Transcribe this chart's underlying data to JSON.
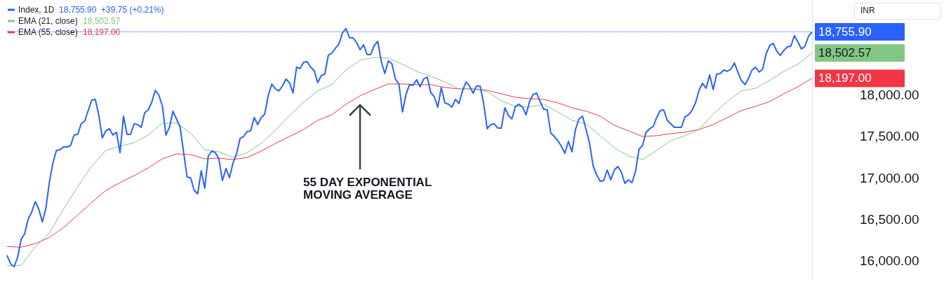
{
  "chart_data": {
    "type": "line",
    "categories": [
      null,
      null,
      null,
      null,
      null,
      null,
      null,
      null,
      null,
      null,
      null,
      null,
      null,
      null,
      null,
      null,
      null,
      null,
      null,
      null,
      null,
      null,
      null,
      null,
      null,
      null,
      null,
      null,
      null,
      null,
      null,
      null,
      null,
      null,
      null,
      null,
      null,
      null,
      null,
      null,
      null,
      null,
      null,
      null,
      null,
      null,
      null,
      null,
      null,
      null,
      null,
      null,
      null,
      null,
      null,
      null,
      null,
      null,
      null,
      null,
      null,
      null,
      null,
      null,
      null,
      null,
      null,
      null,
      null,
      null,
      null,
      null,
      null,
      null,
      null,
      null,
      null,
      null,
      null,
      null,
      null,
      null,
      null,
      null,
      null,
      null,
      null,
      null,
      null,
      null,
      null,
      null,
      null,
      null,
      null,
      null,
      null,
      null,
      null,
      null,
      null,
      null,
      null,
      null,
      null,
      null,
      null,
      null,
      null,
      null,
      null,
      null,
      null,
      null,
      null,
      null,
      null,
      null,
      null,
      null,
      null,
      null,
      null,
      null,
      null,
      null,
      null,
      null,
      null,
      null,
      null,
      null,
      null,
      null,
      null,
      null,
      null,
      null,
      null,
      null,
      null,
      null,
      null,
      null,
      null,
      null,
      null,
      null,
      null,
      null,
      null,
      null,
      null,
      null,
      null,
      null,
      null,
      null,
      null,
      null,
      null,
      null,
      null,
      null,
      null,
      null,
      null,
      null,
      null,
      null,
      null,
      null,
      null,
      null,
      null,
      null,
      null,
      null,
      null,
      null,
      null,
      null,
      null,
      null,
      null,
      null,
      null,
      null,
      null,
      null,
      null,
      null,
      null,
      null,
      null,
      null,
      null,
      null,
      null,
      null,
      null,
      null,
      null,
      null,
      null,
      null,
      null,
      null,
      null,
      null,
      null,
      null,
      null,
      null,
      null,
      null,
      null,
      null,
      null,
      null,
      null,
      null,
      null,
      null,
      null,
      null,
      null,
      null,
      null
    ],
    "series": [
      {
        "name": "Index, 1D",
        "color": "#2962ff",
        "values": [
          16065,
          15964,
          15930,
          16040,
          16259,
          16326,
          16503,
          16587,
          16714,
          16621,
          16469,
          16629,
          16949,
          17177,
          17329,
          17337,
          17371,
          17371,
          17388,
          17514,
          17522,
          17649,
          17682,
          17809,
          17935,
          17944,
          17750,
          17480,
          17565,
          17590,
          17514,
          17548,
          17303,
          17741,
          17522,
          17522,
          17649,
          17640,
          17607,
          17784,
          17817,
          17910,
          18053,
          17994,
          17868,
          17514,
          17607,
          17800,
          17708,
          17615,
          17312,
          17008,
          17000,
          16848,
          16806,
          17084,
          16874,
          17261,
          17320,
          17303,
          17228,
          16966,
          17110,
          17000,
          17177,
          17287,
          17472,
          17497,
          17556,
          17565,
          17725,
          17640,
          17725,
          17767,
          17994,
          18129,
          18070,
          18045,
          18104,
          18188,
          18146,
          18019,
          18331,
          18314,
          18390,
          18399,
          18331,
          18289,
          18146,
          18230,
          18247,
          18474,
          18500,
          18559,
          18609,
          18744,
          18795,
          18685,
          18685,
          18626,
          18542,
          18601,
          18483,
          18483,
          18592,
          18643,
          18399,
          18255,
          18407,
          18373,
          18188,
          18129,
          17792,
          18003,
          18121,
          18112,
          18180,
          18095,
          18188,
          18213,
          18028,
          17977,
          17851,
          18087,
          17902,
          17885,
          17851,
          17944,
          17893,
          18045,
          18154,
          18104,
          18019,
          18104,
          18104,
          17893,
          17590,
          17640,
          17649,
          17598,
          17598,
          17843,
          17750,
          17708,
          17859,
          17885,
          17851,
          17758,
          17918,
          18003,
          18019,
          17918,
          17826,
          17818,
          17539,
          17497,
          17447,
          17379,
          17295,
          17438,
          17312,
          17581,
          17708,
          17741,
          17581,
          17413,
          17143,
          17034,
          16958,
          16966,
          17093,
          16975,
          17093,
          17135,
          17067,
          16933,
          16975,
          16941,
          17076,
          17345,
          17388,
          17548,
          17590,
          17615,
          17725,
          17809,
          17817,
          17691,
          17649,
          17607,
          17607,
          17607,
          17733,
          17758,
          17809,
          17902,
          18053,
          18137,
          18078,
          18239,
          18062,
          18247,
          18255,
          18297,
          18281,
          18306,
          18382,
          18272,
          18171,
          18121,
          18196,
          18297,
          18331,
          18272,
          18306,
          18491,
          18592,
          18618,
          18525,
          18474,
          18533,
          18575,
          18584,
          18710,
          18634,
          18550,
          18584,
          18702,
          18755.9
        ],
        "value_labels": [
          null,
          null,
          null,
          null,
          null,
          null,
          null,
          null,
          null,
          null,
          null,
          null,
          null,
          null,
          null,
          null,
          null,
          null,
          null,
          null,
          null,
          null,
          null,
          null,
          null,
          null,
          null,
          null,
          null,
          null,
          null,
          null,
          null,
          null,
          null,
          null,
          null,
          null,
          null,
          null,
          null,
          null,
          null,
          null,
          null,
          null,
          null,
          null,
          null,
          null,
          null,
          null,
          null,
          null,
          null,
          null,
          null,
          null,
          null,
          null,
          null,
          null,
          null,
          null,
          null,
          null,
          null,
          null,
          null,
          null,
          null,
          null,
          null,
          null,
          null,
          null,
          null,
          null,
          null,
          null,
          null,
          null,
          null,
          null,
          null,
          null,
          null,
          null,
          null,
          null,
          null,
          null,
          null,
          null,
          null,
          null,
          null,
          null,
          null,
          null,
          null,
          null,
          null,
          null,
          null,
          null,
          null,
          null,
          null,
          null,
          null,
          null,
          null,
          null,
          null,
          null,
          null,
          null,
          null,
          null,
          null,
          null,
          null,
          null,
          null,
          null,
          null,
          null,
          null,
          null,
          null,
          null,
          null,
          null,
          null,
          null,
          null,
          null,
          null,
          null,
          null,
          null,
          null,
          null,
          null,
          null,
          null,
          null,
          null,
          null,
          null,
          null,
          null,
          null,
          null,
          null,
          null,
          null,
          null,
          null,
          null,
          null,
          null,
          null,
          null,
          null,
          null,
          null,
          null,
          null,
          null,
          null,
          null,
          null,
          null,
          null,
          null,
          null,
          null,
          null,
          null,
          null,
          null,
          null,
          null,
          null,
          null,
          null,
          null,
          null,
          null,
          null,
          null,
          null,
          null,
          null,
          null,
          null,
          null,
          null,
          null,
          null,
          null,
          null,
          null,
          null,
          null,
          null,
          null,
          null,
          null,
          null,
          null,
          null,
          null,
          null,
          null,
          null,
          null,
          null,
          null,
          null,
          null,
          null,
          null,
          null,
          null,
          null,
          "18,755.90"
        ]
      },
      {
        "name": "EMA (21, close)",
        "color": "#81c784",
        "values": [
          15938,
          null,
          null,
          null,
          15947,
          null,
          null,
          null,
          16166,
          null,
          null,
          null,
          16335,
          null,
          null,
          null,
          16621,
          null,
          null,
          null,
          16891,
          null,
          null,
          null,
          17143,
          null,
          null,
          null,
          17329,
          null,
          null,
          null,
          17379,
          null,
          null,
          null,
          17421,
          null,
          null,
          null,
          17514,
          null,
          null,
          null,
          17657,
          null,
          null,
          null,
          17657,
          null,
          null,
          null,
          17539,
          null,
          null,
          null,
          17337,
          null,
          null,
          null,
          17312,
          null,
          null,
          null,
          17244,
          null,
          null,
          null,
          17303,
          null,
          null,
          null,
          17413,
          null,
          null,
          null,
          17573,
          null,
          null,
          null,
          17750,
          null,
          null,
          null,
          17910,
          null,
          null,
          null,
          18045,
          null,
          null,
          null,
          18121,
          null,
          null,
          null,
          18297,
          null,
          null,
          null,
          18415,
          null,
          null,
          null,
          18449,
          null,
          null,
          null,
          18440,
          null,
          null,
          null,
          18365,
          null,
          null,
          null,
          18281,
          null,
          null,
          null,
          18222,
          null,
          null,
          null,
          18154,
          null,
          null,
          null,
          18070,
          null,
          null,
          null,
          18070,
          null,
          null,
          null,
          18036,
          null,
          null,
          null,
          17927,
          null,
          null,
          null,
          17859,
          null,
          null,
          null,
          17851,
          null,
          null,
          null,
          17885,
          null,
          null,
          null,
          17792,
          null,
          null,
          null,
          17691,
          null,
          null,
          null,
          17649,
          null,
          null,
          null,
          17506,
          null,
          null,
          null,
          17363,
          null,
          null,
          null,
          17261,
          null,
          null,
          null,
          17219,
          null,
          null,
          null,
          17329,
          null,
          null,
          null,
          17447,
          null,
          null,
          null,
          17506,
          null,
          null,
          null,
          17581,
          null,
          null,
          null,
          17767,
          null,
          null,
          null,
          17918,
          null,
          null,
          null,
          18045,
          null,
          null,
          null,
          18078,
          null,
          null,
          null,
          18171,
          null,
          null,
          null,
          18281,
          null,
          null,
          null,
          18365,
          null,
          null,
          null,
          18502.57
        ],
        "value_labels": [
          null,
          null,
          null,
          null,
          null,
          null,
          null,
          null,
          null,
          null,
          null,
          null,
          null,
          null,
          null,
          null,
          null,
          null,
          null,
          null,
          null,
          null,
          null,
          null,
          null,
          null,
          null,
          null,
          null,
          null,
          null,
          null,
          null,
          null,
          null,
          null,
          null,
          null,
          null,
          null,
          null,
          null,
          null,
          null,
          null,
          null,
          null,
          null,
          null,
          null,
          null,
          null,
          null,
          null,
          null,
          null,
          null,
          null,
          null,
          null,
          null,
          null,
          null,
          null,
          null,
          null,
          null,
          null,
          null,
          null,
          null,
          null,
          null,
          null,
          null,
          null,
          null,
          null,
          null,
          null,
          null,
          null,
          null,
          null,
          null,
          null,
          null,
          null,
          null,
          null,
          null,
          null,
          null,
          null,
          null,
          null,
          null,
          null,
          null,
          null,
          null,
          null,
          null,
          null,
          null,
          null,
          null,
          null,
          null,
          null,
          null,
          null,
          null,
          null,
          null,
          null,
          null,
          null,
          null,
          null,
          null,
          null,
          null,
          null,
          null,
          null,
          null,
          null,
          null,
          null,
          null,
          null,
          null,
          null,
          null,
          null,
          null,
          null,
          null,
          null,
          null,
          null,
          null,
          null,
          null,
          null,
          null,
          null,
          null,
          null,
          null,
          null,
          null,
          null,
          null,
          null,
          null,
          null,
          null,
          null,
          null,
          null,
          null,
          null,
          null,
          null,
          null,
          null,
          null,
          null,
          null,
          null,
          null,
          null,
          null,
          null,
          null,
          null,
          null,
          null,
          null,
          null,
          null,
          null,
          null,
          null,
          null,
          null,
          null,
          null,
          null,
          null,
          null,
          null,
          null,
          null,
          null,
          null,
          null,
          null,
          null,
          null,
          null,
          null,
          null,
          null,
          null,
          null,
          null,
          null,
          null,
          null,
          null,
          null,
          null,
          null,
          null,
          null,
          null,
          null,
          null,
          null,
          null,
          null,
          null,
          null,
          null,
          null,
          "18,502.57"
        ]
      },
      {
        "name": "EMA (55, close)",
        "color": "#f23645",
        "values": [
          16172,
          null,
          null,
          null,
          16163,
          null,
          null,
          null,
          16206,
          null,
          null,
          null,
          16281,
          null,
          null,
          null,
          16399,
          null,
          null,
          null,
          16551,
          null,
          null,
          null,
          16703,
          null,
          null,
          null,
          16848,
          null,
          null,
          null,
          16941,
          null,
          null,
          null,
          17025,
          null,
          null,
          null,
          17118,
          null,
          null,
          null,
          17228,
          null,
          null,
          null,
          17287,
          null,
          null,
          null,
          17278,
          null,
          null,
          null,
          17228,
          null,
          null,
          null,
          17236,
          null,
          null,
          null,
          17219,
          null,
          null,
          null,
          17244,
          null,
          null,
          null,
          17320,
          null,
          null,
          null,
          17413,
          null,
          null,
          null,
          17497,
          null,
          null,
          null,
          17581,
          null,
          null,
          null,
          17691,
          null,
          null,
          null,
          17758,
          null,
          null,
          null,
          17885,
          null,
          null,
          null,
          17986,
          null,
          null,
          null,
          18062,
          null,
          null,
          null,
          18129,
          null,
          null,
          null,
          18129,
          null,
          null,
          null,
          18121,
          null,
          null,
          null,
          18121,
          null,
          null,
          null,
          18087,
          null,
          null,
          null,
          18070,
          null,
          null,
          null,
          18070,
          null,
          null,
          null,
          18053,
          null,
          null,
          null,
          18011,
          null,
          null,
          null,
          17969,
          null,
          null,
          null,
          17952,
          null,
          null,
          null,
          17944,
          null,
          null,
          null,
          17902,
          null,
          null,
          null,
          17843,
          null,
          null,
          null,
          17801,
          null,
          null,
          null,
          17742,
          null,
          null,
          null,
          17632,
          null,
          null,
          null,
          17565,
          null,
          null,
          null,
          17497,
          null,
          null,
          null,
          17506,
          null,
          null,
          null,
          17531,
          null,
          null,
          null,
          17548,
          null,
          null,
          null,
          17581,
          null,
          null,
          null,
          17640,
          null,
          null,
          null,
          17725,
          null,
          null,
          null,
          17809,
          null,
          null,
          null,
          17859,
          null,
          null,
          null,
          17918,
          null,
          null,
          null,
          18011,
          null,
          null,
          null,
          18095,
          null,
          null,
          null,
          18197
        ],
        "value_labels": [
          null,
          null,
          null,
          null,
          null,
          null,
          null,
          null,
          null,
          null,
          null,
          null,
          null,
          null,
          null,
          null,
          null,
          null,
          null,
          null,
          null,
          null,
          null,
          null,
          null,
          null,
          null,
          null,
          null,
          null,
          null,
          null,
          null,
          null,
          null,
          null,
          null,
          null,
          null,
          null,
          null,
          null,
          null,
          null,
          null,
          null,
          null,
          null,
          null,
          null,
          null,
          null,
          null,
          null,
          null,
          null,
          null,
          null,
          null,
          null,
          null,
          null,
          null,
          null,
          null,
          null,
          null,
          null,
          null,
          null,
          null,
          null,
          null,
          null,
          null,
          null,
          null,
          null,
          null,
          null,
          null,
          null,
          null,
          null,
          null,
          null,
          null,
          null,
          null,
          null,
          null,
          null,
          null,
          null,
          null,
          null,
          null,
          null,
          null,
          null,
          null,
          null,
          null,
          null,
          null,
          null,
          null,
          null,
          null,
          null,
          null,
          null,
          null,
          null,
          null,
          null,
          null,
          null,
          null,
          null,
          null,
          null,
          null,
          null,
          null,
          null,
          null,
          null,
          null,
          null,
          null,
          null,
          null,
          null,
          null,
          null,
          null,
          null,
          null,
          null,
          null,
          null,
          null,
          null,
          null,
          null,
          null,
          null,
          null,
          null,
          null,
          null,
          null,
          null,
          null,
          null,
          null,
          null,
          null,
          null,
          null,
          null,
          null,
          null,
          null,
          null,
          null,
          null,
          null,
          null,
          null,
          null,
          null,
          null,
          null,
          null,
          null,
          null,
          null,
          null,
          null,
          null,
          null,
          null,
          null,
          null,
          null,
          null,
          null,
          null,
          null,
          null,
          null,
          null,
          null,
          null,
          null,
          null,
          null,
          null,
          null,
          null,
          null,
          null,
          null,
          null,
          null,
          null,
          null,
          null,
          null,
          null,
          null,
          null,
          null,
          null,
          null,
          null,
          null,
          null,
          null,
          null,
          null,
          null,
          null,
          null,
          null,
          null,
          "18,197.00"
        ]
      }
    ],
    "ylim": [
      15770,
      19140
    ],
    "yticks": [
      {
        "value": 16000,
        "label": "16,000.00"
      },
      {
        "value": 16500,
        "label": "16,500.00"
      },
      {
        "value": 17000,
        "label": "17,000.00"
      },
      {
        "value": 17500,
        "label": "17,500.00"
      },
      {
        "value": 18000,
        "label": "18,000.00"
      }
    ],
    "ref_lines": [
      {
        "axis": "y",
        "value": 18755.9,
        "color": "#2962ff",
        "line_style": "dotted"
      }
    ],
    "annotations": [
      "+39.75 (+0.21%)",
      "INR",
      "55 DAY EXPONENTIAL\nMOVING AVERAGE"
    ],
    "legend": "top left",
    "grid": false,
    "tick_labels": "y"
  }
}
